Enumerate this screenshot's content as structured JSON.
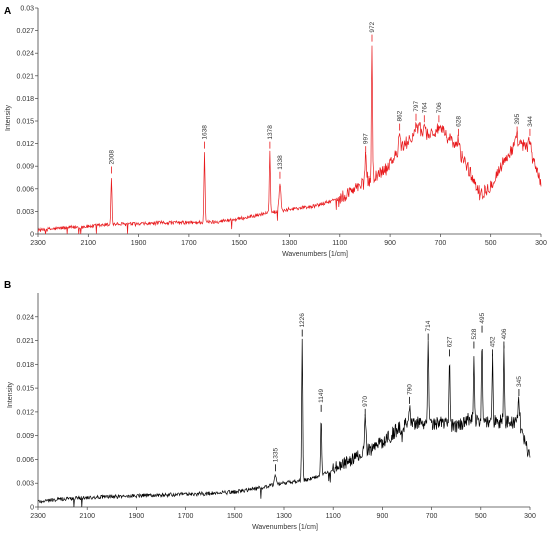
{
  "chart_data": [
    {
      "panel": "A",
      "type": "line",
      "xlabel": "Wavenumbers [1/cm]",
      "ylabel": "Intensity",
      "xlim": [
        2300,
        300
      ],
      "ylim": [
        0,
        0.03
      ],
      "x_reversed": true,
      "xticks": [
        2300,
        2100,
        1900,
        1700,
        1500,
        1300,
        1100,
        900,
        700,
        500,
        300
      ],
      "xtick_labels": [
        "2300",
        "2100",
        "1900",
        "1700",
        "1500",
        "1300",
        "1100",
        "900",
        "700",
        "500",
        "300"
      ],
      "yticks": [
        0,
        0.003,
        0.006,
        0.009,
        0.012,
        0.015,
        0.018,
        0.021,
        0.024,
        0.027,
        0.03
      ],
      "ytick_labels": [
        "0",
        "0.003",
        "0.006",
        "0.009",
        "0.012",
        "0.015",
        "0.018",
        "0.021",
        "0.024",
        "0.027",
        "0.03"
      ],
      "line_color": "#e8191c",
      "baseline": [
        [
          2300,
          0.0005
        ],
        [
          2200,
          0.0008
        ],
        [
          2100,
          0.001
        ],
        [
          2000,
          0.0013
        ],
        [
          1900,
          0.0013
        ],
        [
          1800,
          0.0015
        ],
        [
          1700,
          0.0015
        ],
        [
          1600,
          0.0016
        ],
        [
          1500,
          0.002
        ],
        [
          1400,
          0.0027
        ],
        [
          1300,
          0.0033
        ],
        [
          1200,
          0.0037
        ],
        [
          1100,
          0.0047
        ],
        [
          1050,
          0.0058
        ],
        [
          1000,
          0.0067
        ],
        [
          950,
          0.0078
        ],
        [
          900,
          0.0095
        ],
        [
          850,
          0.0115
        ],
        [
          800,
          0.0135
        ],
        [
          780,
          0.014
        ],
        [
          750,
          0.0132
        ],
        [
          700,
          0.0138
        ],
        [
          650,
          0.0122
        ],
        [
          600,
          0.0095
        ],
        [
          560,
          0.0065
        ],
        [
          530,
          0.0055
        ],
        [
          500,
          0.0065
        ],
        [
          450,
          0.0095
        ],
        [
          400,
          0.012
        ],
        [
          350,
          0.0115
        ],
        [
          310,
          0.008
        ],
        [
          300,
          0.0065
        ]
      ],
      "peaks": [
        {
          "x": 2008,
          "y": 0.0075,
          "label": "2008"
        },
        {
          "x": 1638,
          "y": 0.0108,
          "label": "1638"
        },
        {
          "x": 1378,
          "y": 0.0108,
          "label": "1378"
        },
        {
          "x": 1338,
          "y": 0.0068,
          "label": "1338"
        },
        {
          "x": 997,
          "y": 0.0102,
          "label": "997"
        },
        {
          "x": 972,
          "y": 0.025,
          "label": "972"
        },
        {
          "x": 862,
          "y": 0.0132,
          "label": "862"
        },
        {
          "x": 797,
          "y": 0.0145,
          "label": "797"
        },
        {
          "x": 764,
          "y": 0.0143,
          "label": "764"
        },
        {
          "x": 706,
          "y": 0.0143,
          "label": "706"
        },
        {
          "x": 628,
          "y": 0.0125,
          "label": "628"
        },
        {
          "x": 395,
          "y": 0.0128,
          "label": "395"
        },
        {
          "x": 344,
          "y": 0.0125,
          "label": "344"
        }
      ]
    },
    {
      "panel": "B",
      "type": "line",
      "xlabel": "Wavenumbers [1/cm]",
      "ylabel": "Intensity",
      "xlim": [
        2300,
        300
      ],
      "ylim": [
        0,
        0.027
      ],
      "x_reversed": true,
      "xticks": [
        2300,
        2100,
        1900,
        1700,
        1500,
        1300,
        1100,
        900,
        700,
        500,
        300
      ],
      "xtick_labels": [
        "2300",
        "2100",
        "1900",
        "1700",
        "1500",
        "1300",
        "1100",
        "900",
        "700",
        "500",
        "300"
      ],
      "yticks": [
        0,
        0.003,
        0.006,
        0.009,
        0.012,
        0.015,
        0.018,
        0.021,
        0.024
      ],
      "ytick_labels": [
        "0",
        "0.003",
        "0.006",
        "0.009",
        "0.012",
        "0.015",
        "0.018",
        "0.021",
        "0.024"
      ],
      "line_color": "#000000",
      "baseline": [
        [
          2300,
          0.0007
        ],
        [
          2200,
          0.001
        ],
        [
          2100,
          0.0012
        ],
        [
          2000,
          0.0013
        ],
        [
          1900,
          0.0014
        ],
        [
          1800,
          0.0015
        ],
        [
          1700,
          0.0016
        ],
        [
          1600,
          0.0017
        ],
        [
          1500,
          0.0019
        ],
        [
          1400,
          0.0024
        ],
        [
          1300,
          0.003
        ],
        [
          1200,
          0.0035
        ],
        [
          1150,
          0.004
        ],
        [
          1100,
          0.0047
        ],
        [
          1050,
          0.0055
        ],
        [
          1000,
          0.0063
        ],
        [
          950,
          0.0073
        ],
        [
          900,
          0.0082
        ],
        [
          850,
          0.0095
        ],
        [
          800,
          0.0105
        ],
        [
          750,
          0.0108
        ],
        [
          700,
          0.0105
        ],
        [
          650,
          0.0105
        ],
        [
          600,
          0.0102
        ],
        [
          550,
          0.011
        ],
        [
          500,
          0.011
        ],
        [
          450,
          0.0107
        ],
        [
          400,
          0.0108
        ],
        [
          350,
          0.0105
        ],
        [
          320,
          0.0085
        ],
        [
          300,
          0.006
        ]
      ],
      "peaks": [
        {
          "x": 1335,
          "y": 0.004,
          "label": "1335"
        },
        {
          "x": 1226,
          "y": 0.021,
          "label": "1226"
        },
        {
          "x": 1149,
          "y": 0.0115,
          "label": "1149"
        },
        {
          "x": 970,
          "y": 0.011,
          "label": "970"
        },
        {
          "x": 790,
          "y": 0.0125,
          "label": "790"
        },
        {
          "x": 714,
          "y": 0.0205,
          "label": "714"
        },
        {
          "x": 627,
          "y": 0.0185,
          "label": "627"
        },
        {
          "x": 528,
          "y": 0.0195,
          "label": "528"
        },
        {
          "x": 495,
          "y": 0.0215,
          "label": "495"
        },
        {
          "x": 452,
          "y": 0.0185,
          "label": "452"
        },
        {
          "x": 406,
          "y": 0.0195,
          "label": "406"
        },
        {
          "x": 345,
          "y": 0.0135,
          "label": "345"
        }
      ]
    }
  ]
}
